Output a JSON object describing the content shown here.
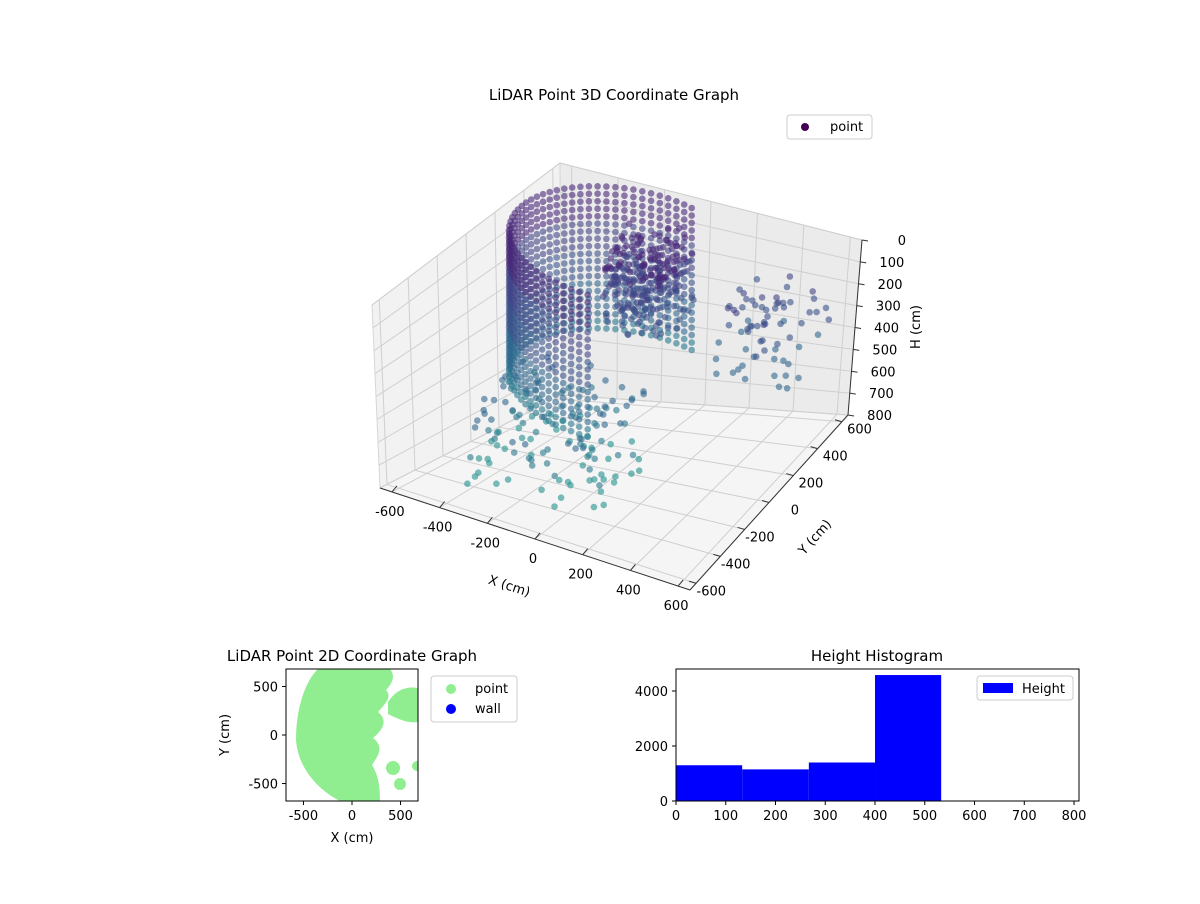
{
  "chart_data": [
    {
      "type": "scatter",
      "projection": "3d",
      "title": "LiDAR Point 3D Coordinate Graph",
      "xlabel": "X (cm)",
      "ylabel": "Y (cm)",
      "zlabel": "H (cm)",
      "xlim": [
        -650,
        650
      ],
      "ylim": [
        -650,
        650
      ],
      "zlim": [
        800,
        0
      ],
      "xticks": [
        -600,
        -400,
        -200,
        0,
        200,
        400,
        600
      ],
      "yticks": [
        -600,
        -400,
        -200,
        0,
        200,
        400,
        600
      ],
      "zticks": [
        0,
        100,
        200,
        300,
        400,
        500,
        600,
        700,
        800
      ],
      "grid": true,
      "legend": {
        "placement": "upper-right",
        "entries": [
          {
            "label": "point",
            "color": "#440154"
          }
        ]
      },
      "colormap": "viridis"
    },
    {
      "type": "scatter",
      "title": "LiDAR Point 2D Coordinate Graph",
      "xlabel": "X (cm)",
      "ylabel": "Y (cm)",
      "xlim": [
        -680,
        680
      ],
      "ylim": [
        -680,
        680
      ],
      "xticks": [
        -500,
        0,
        500
      ],
      "yticks": [
        -500,
        0,
        500
      ],
      "legend": {
        "placement": "outside-right",
        "entries": [
          {
            "label": "point",
            "color": "#90ee90"
          },
          {
            "label": "wall",
            "color": "#0000ff"
          }
        ]
      }
    },
    {
      "type": "bar",
      "subtype": "histogram",
      "title": "Height Histogram",
      "series": [
        {
          "name": "Height",
          "color": "#0000ff",
          "bins": [
            {
              "x0": 0,
              "x1": 133,
              "count": 1300
            },
            {
              "x0": 133,
              "x1": 267,
              "count": 1150
            },
            {
              "x0": 267,
              "x1": 400,
              "count": 1400
            },
            {
              "x0": 400,
              "x1": 533,
              "count": 4580
            }
          ]
        }
      ],
      "xlim": [
        0,
        810
      ],
      "ylim": [
        0,
        4800
      ],
      "xticks": [
        0,
        100,
        200,
        300,
        400,
        500,
        600,
        700,
        800
      ],
      "yticks": [
        0,
        2000,
        4000
      ],
      "legend": {
        "placement": "upper-right"
      }
    }
  ]
}
